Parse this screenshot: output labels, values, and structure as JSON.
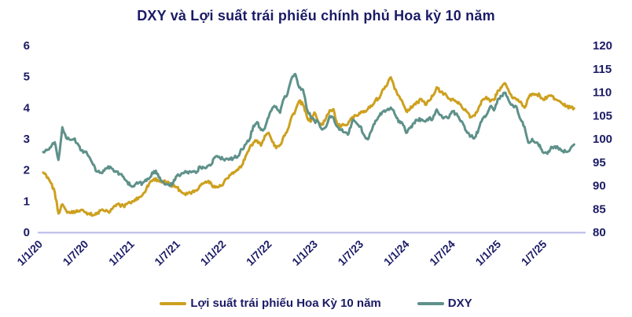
{
  "chart_data": {
    "type": "line",
    "title": "DXY và Lợi suất trái phiếu chính phủ Hoa kỳ 10 năm",
    "text_color": "#1b1b66",
    "baseline_color": "#b8b8e8",
    "grid": "none",
    "legend_position": "bottom",
    "x_tick_labels": [
      "1/1/20",
      "1/7/20",
      "1/1/21",
      "1/7/21",
      "1/1/22",
      "1/7/22",
      "1/1/23",
      "1/7/23",
      "1/1/24",
      "1/7/24",
      "1/1/25",
      "1/7/25"
    ],
    "x_tick_months": [
      0,
      6,
      12,
      18,
      24,
      30,
      36,
      42,
      48,
      54,
      60,
      66
    ],
    "x_total_months": 71,
    "left_axis": {
      "min": 0,
      "max": 6,
      "ticks": [
        0,
        1,
        2,
        3,
        4,
        5,
        6
      ]
    },
    "right_axis": {
      "min": 80,
      "max": 120,
      "ticks": [
        80,
        85,
        90,
        95,
        100,
        105,
        110,
        115,
        120
      ]
    },
    "series": [
      {
        "name": "Lợi suất trái phiếu Hoa Kỳ 10 năm",
        "axis": "left",
        "color": "#CDA01E",
        "points_per_month": 2,
        "values": [
          1.92,
          1.75,
          1.58,
          1.3,
          0.6,
          0.9,
          0.7,
          0.62,
          0.68,
          0.66,
          0.72,
          0.64,
          0.6,
          0.55,
          0.58,
          0.7,
          0.68,
          0.66,
          0.74,
          0.84,
          0.88,
          0.84,
          0.92,
          0.93,
          1.05,
          1.12,
          1.2,
          1.4,
          1.62,
          1.72,
          1.68,
          1.6,
          1.62,
          1.56,
          1.5,
          1.44,
          1.32,
          1.24,
          1.26,
          1.3,
          1.34,
          1.5,
          1.58,
          1.62,
          1.56,
          1.44,
          1.46,
          1.51,
          1.72,
          1.84,
          1.94,
          2.0,
          2.15,
          2.45,
          2.7,
          2.88,
          2.95,
          2.78,
          3.1,
          3.2,
          2.9,
          2.7,
          2.8,
          3.1,
          3.3,
          3.7,
          3.9,
          4.22,
          4.1,
          3.72,
          3.55,
          3.85,
          3.55,
          3.45,
          3.65,
          3.92,
          3.95,
          3.45,
          3.4,
          3.45,
          3.55,
          3.7,
          3.75,
          3.82,
          3.9,
          3.96,
          4.05,
          4.25,
          4.3,
          4.6,
          4.72,
          4.98,
          4.6,
          4.4,
          4.2,
          3.9,
          3.95,
          4.1,
          4.18,
          4.28,
          4.1,
          4.22,
          4.38,
          4.66,
          4.5,
          4.45,
          4.3,
          4.28,
          4.2,
          4.12,
          3.95,
          3.86,
          3.7,
          3.75,
          4.0,
          4.25,
          4.35,
          4.2,
          4.25,
          4.55,
          4.65,
          4.78,
          4.5,
          4.3,
          4.25,
          4.2,
          4.0,
          4.3,
          4.45,
          4.42,
          4.4,
          4.25,
          4.35,
          4.4,
          4.28,
          4.22,
          4.12,
          4.05,
          4.0,
          3.98
        ]
      },
      {
        "name": "DXY",
        "axis": "right",
        "color": "#5E918A",
        "points_per_month": 2,
        "values": [
          97.2,
          97.6,
          98.2,
          99.3,
          95.5,
          102.5,
          100.2,
          99.8,
          100.0,
          99.0,
          97.5,
          97.2,
          96.2,
          94.5,
          93.0,
          92.8,
          93.2,
          94.1,
          93.6,
          93.1,
          92.5,
          91.9,
          90.8,
          89.9,
          90.2,
          90.6,
          90.5,
          91.0,
          91.8,
          93.1,
          92.5,
          91.0,
          90.2,
          90.0,
          90.5,
          92.1,
          92.3,
          92.9,
          92.6,
          93.0,
          92.7,
          94.1,
          93.8,
          94.2,
          94.5,
          96.1,
          96.2,
          95.7,
          95.8,
          95.6,
          96.0,
          96.3,
          97.8,
          98.8,
          99.8,
          102.8,
          103.6,
          101.9,
          102.2,
          104.6,
          106.6,
          106.9,
          105.6,
          108.6,
          109.8,
          112.9,
          113.9,
          111.0,
          110.6,
          106.4,
          104.8,
          103.8,
          103.6,
          102.0,
          102.5,
          104.9,
          104.5,
          102.6,
          101.9,
          101.4,
          101.2,
          104.1,
          103.4,
          102.7,
          100.8,
          99.9,
          101.8,
          103.9,
          104.9,
          105.9,
          106.2,
          106.7,
          105.4,
          103.6,
          103.4,
          101.3,
          102.3,
          103.4,
          104.0,
          104.2,
          103.7,
          104.5,
          104.3,
          106.3,
          105.1,
          104.6,
          104.4,
          105.9,
          105.4,
          104.2,
          103.1,
          101.3,
          100.6,
          100.3,
          102.1,
          104.3,
          105.1,
          106.9,
          106.1,
          108.5,
          109.2,
          109.9,
          108.0,
          107.1,
          106.7,
          104.1,
          102.6,
          99.2,
          100.0,
          99.2,
          98.7,
          97.0,
          96.8,
          98.3,
          98.4,
          97.7,
          97.4,
          97.2,
          97.9,
          98.8
        ]
      }
    ]
  }
}
